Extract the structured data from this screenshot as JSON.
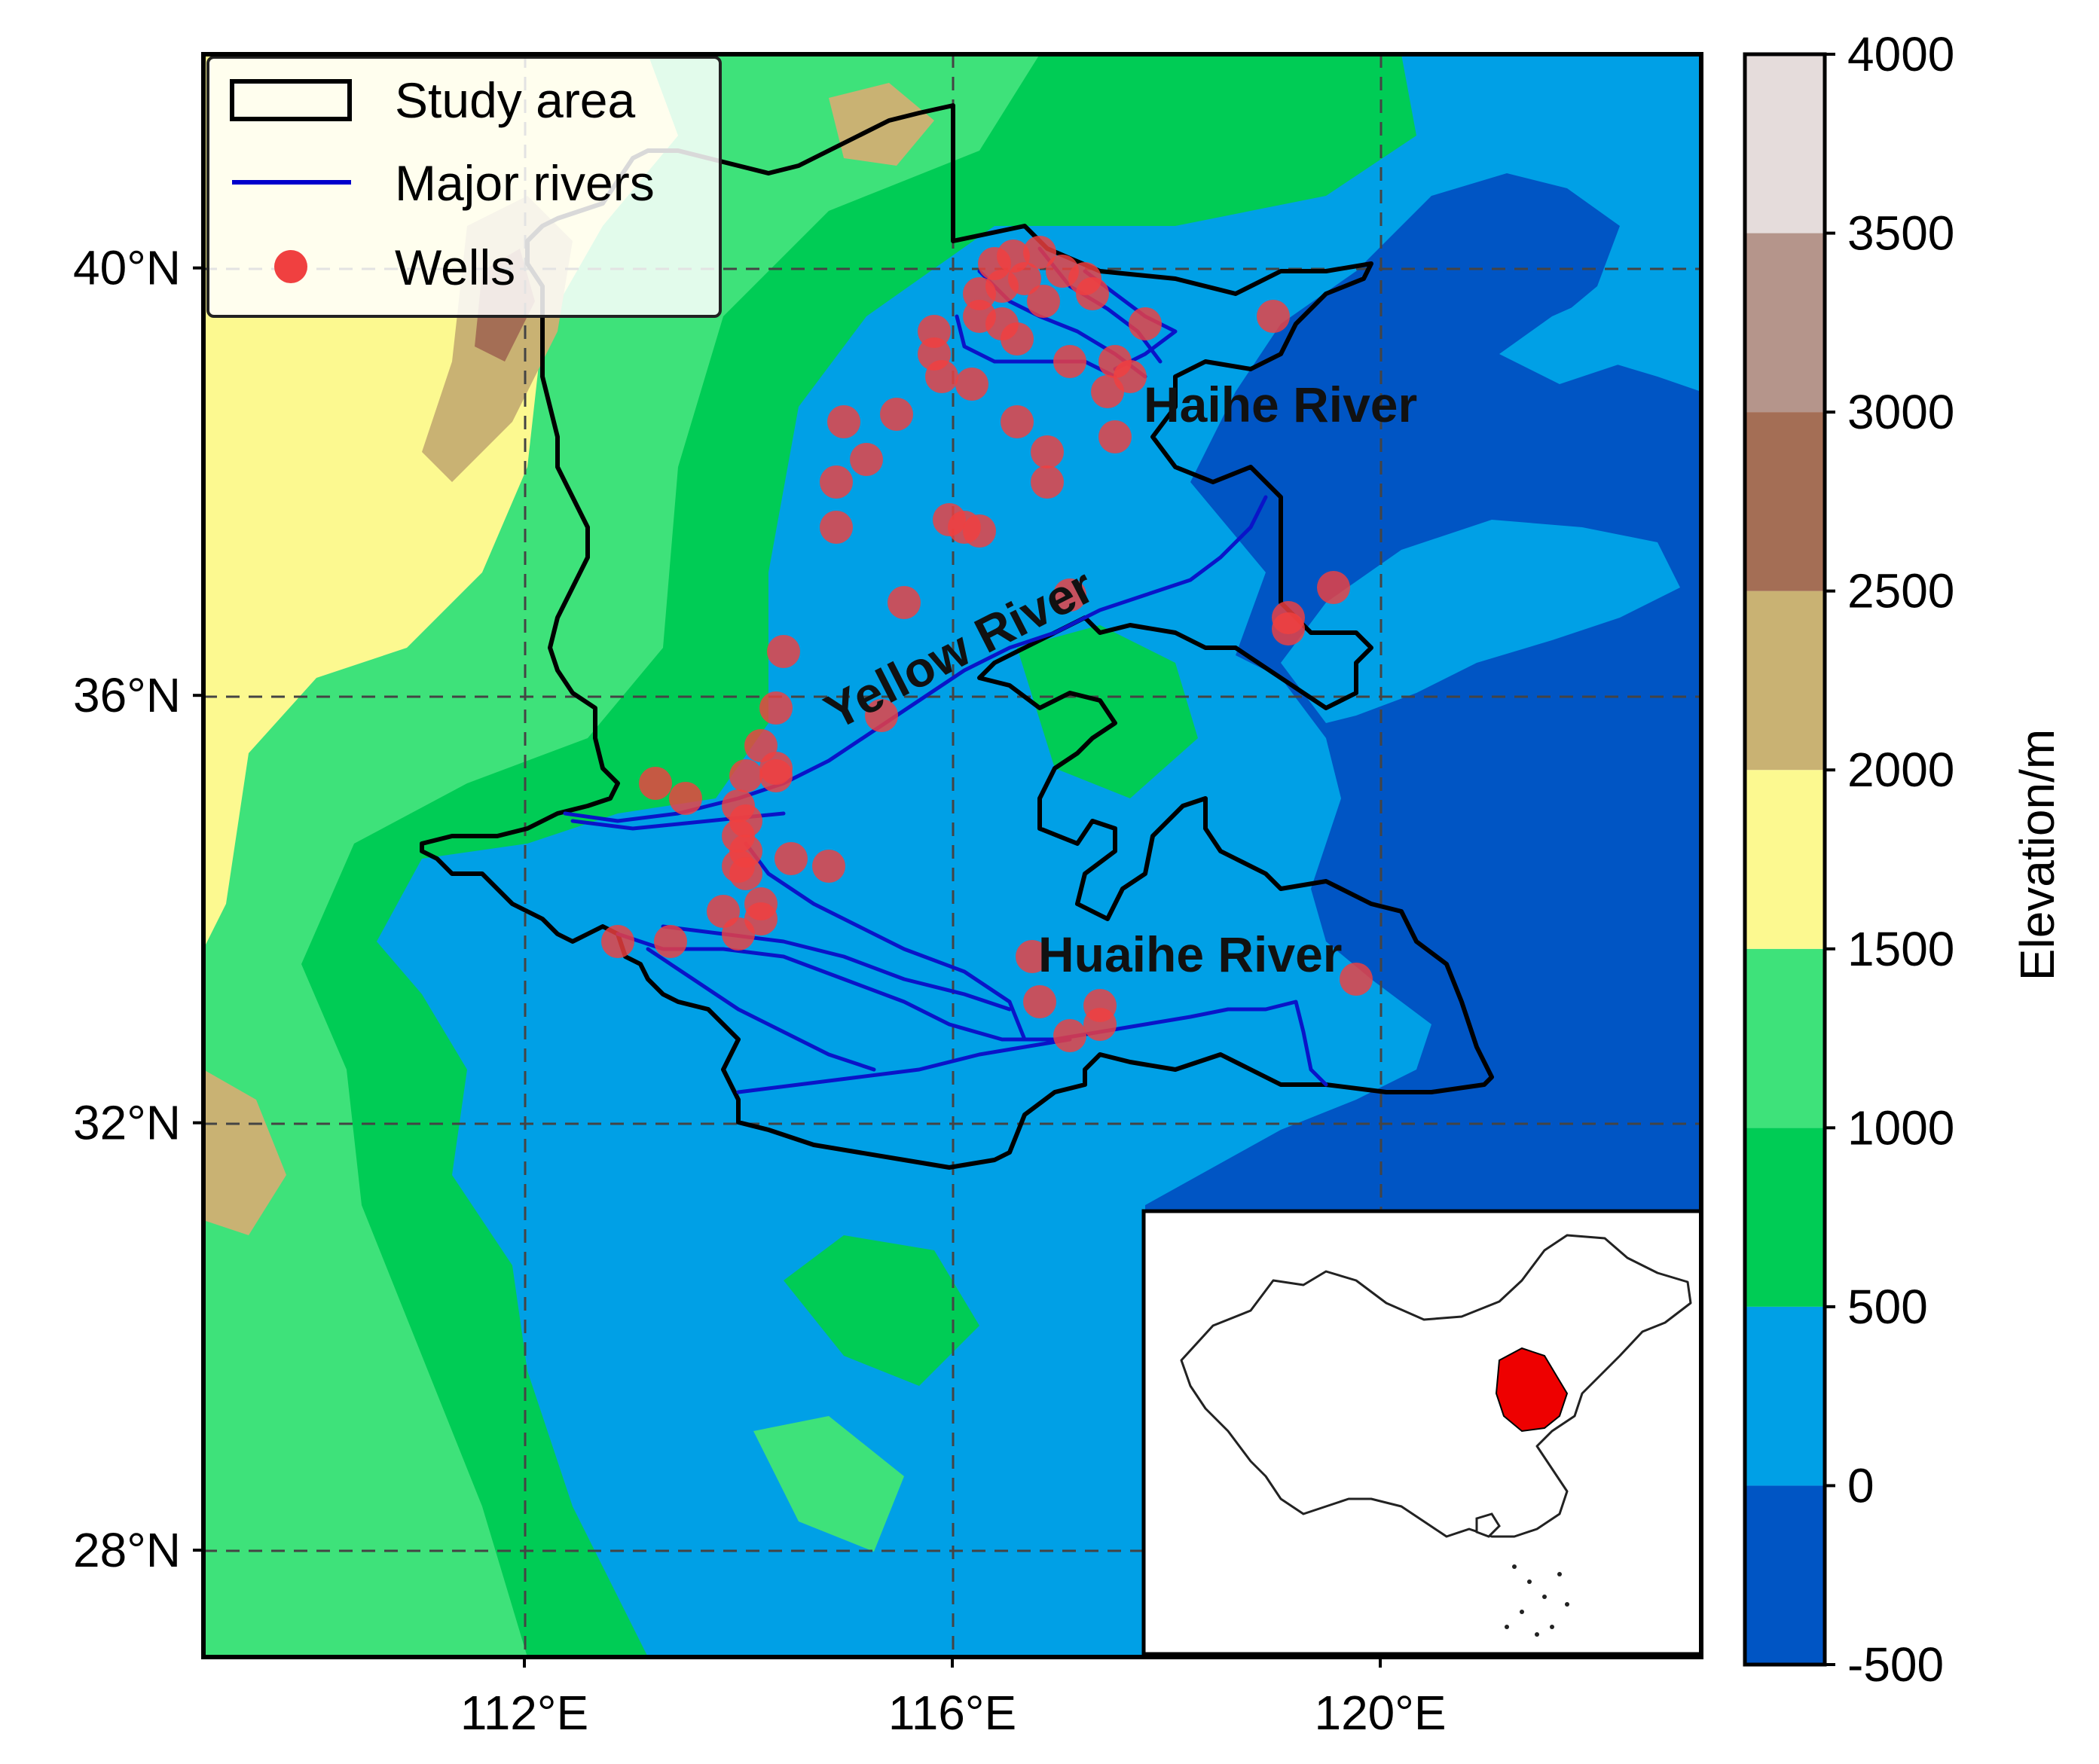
{
  "map": {
    "lon_ticks": [
      {
        "value": 112,
        "label": "112°E"
      },
      {
        "value": 116,
        "label": "116°E"
      },
      {
        "value": 120,
        "label": "120°E"
      }
    ],
    "lat_ticks": [
      {
        "value": 40,
        "label": "40°N"
      },
      {
        "value": 36,
        "label": "36°N"
      },
      {
        "value": 32,
        "label": "32°N"
      },
      {
        "value": 28,
        "label": "28°N"
      }
    ],
    "extent": {
      "lon": [
        109,
        123
      ],
      "lat": [
        27,
        42
      ]
    },
    "grid": true,
    "legend": {
      "position": "top-left",
      "items": [
        {
          "label": "Study area",
          "symbol": "box",
          "color": "#000000"
        },
        {
          "label": "Major rivers",
          "symbol": "line",
          "color": "#0000cc"
        },
        {
          "label": "Wells",
          "symbol": "dot",
          "color": "#f04040"
        }
      ]
    },
    "river_labels": [
      "Haihe River",
      "Yellow River",
      "Huaihe River"
    ],
    "well_color": "#f04040",
    "river_color": "#0a14c8"
  },
  "colorbar": {
    "label": "Elevation/m",
    "ticks": [
      "4000",
      "3500",
      "3000",
      "2500",
      "2000",
      "1500",
      "1000",
      "500",
      "0",
      "-500"
    ],
    "bands": [
      {
        "from": -500,
        "to": 0,
        "color": "#0055c4"
      },
      {
        "from": 0,
        "to": 500,
        "color": "#00a0e6"
      },
      {
        "from": 500,
        "to": 1000,
        "color": "#00cc55"
      },
      {
        "from": 1000,
        "to": 1500,
        "color": "#3ee27a"
      },
      {
        "from": 1500,
        "to": 2000,
        "color": "#fcf990"
      },
      {
        "from": 2000,
        "to": 2500,
        "color": "#c9b273"
      },
      {
        "from": 2500,
        "to": 3000,
        "color": "#a46e55"
      },
      {
        "from": 3000,
        "to": 3500,
        "color": "#b5958b"
      },
      {
        "from": 3500,
        "to": 4000,
        "color": "#e5dcdb"
      }
    ]
  },
  "inset": {
    "description_color_highlight": "#ee0000"
  }
}
